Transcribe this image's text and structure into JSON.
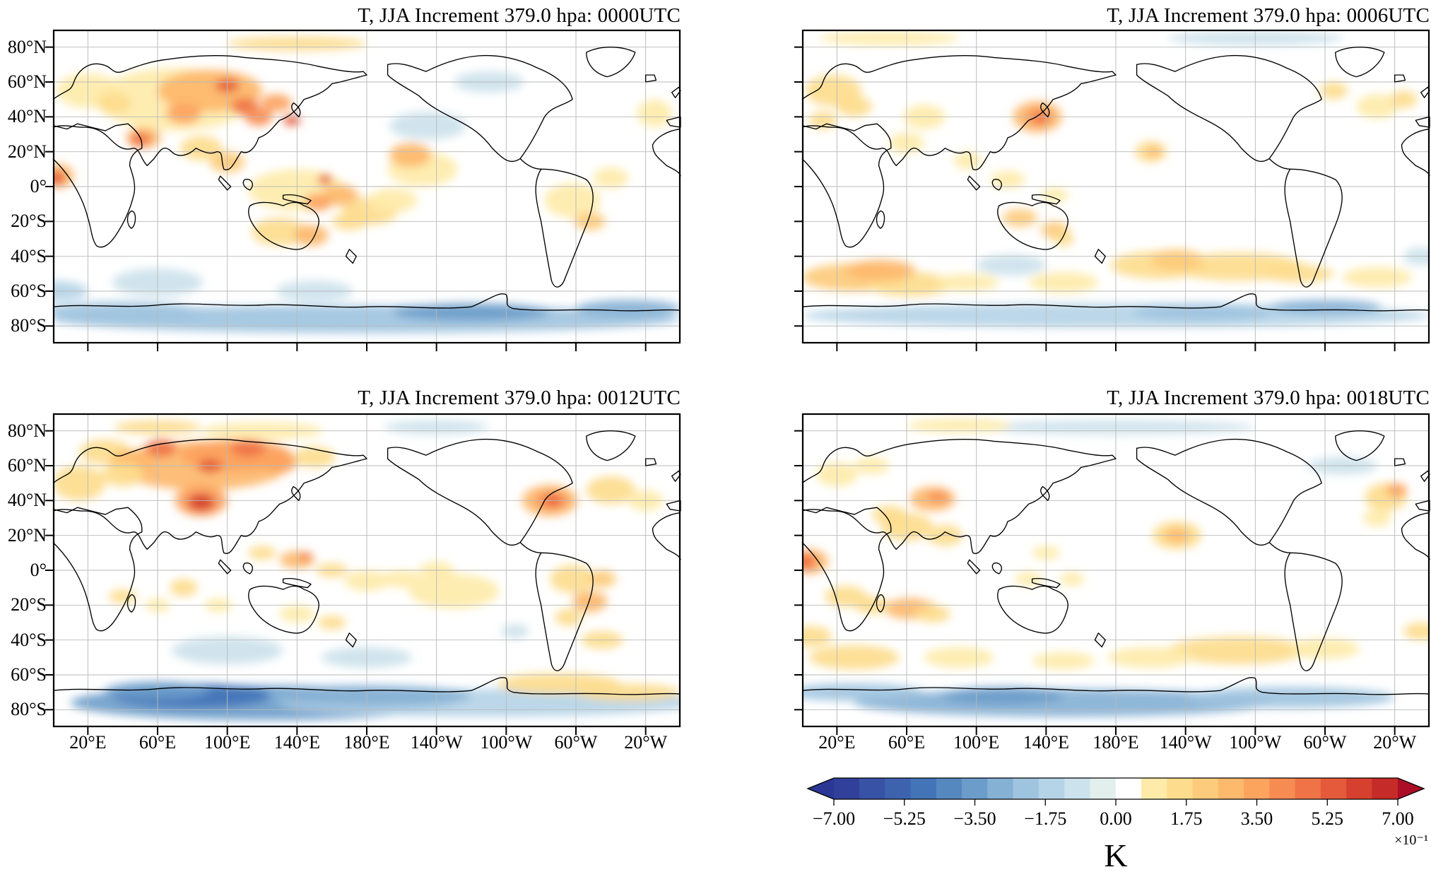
{
  "chart_data": {
    "type": "heatmap",
    "variable": "Temperature (T) analysis increment",
    "season": "JJA",
    "level_hpa": "379.0",
    "projection": "equirectangular, longitude 0-360 centered on 180",
    "grid": "on",
    "x_ticks": [
      "20°E",
      "60°E",
      "100°E",
      "140°E",
      "180°E",
      "140°W",
      "100°W",
      "60°W",
      "20°W"
    ],
    "y_ticks": [
      "80°N",
      "60°N",
      "40°N",
      "20°N",
      "0°",
      "20°S",
      "40°S",
      "60°S",
      "80°S"
    ],
    "colorbar": {
      "min": -7.0,
      "max": 7.0,
      "tick_interval": 1.75,
      "tick_labels": [
        "−7.00",
        "−5.25",
        "−3.50",
        "−1.75",
        "0.00",
        "1.75",
        "3.50",
        "5.25",
        "7.00"
      ],
      "tick_values": [
        -7.0,
        -5.25,
        -3.5,
        -1.75,
        0.0,
        1.75,
        3.5,
        5.25,
        7.0
      ],
      "unit": "K",
      "exponent": "×10⁻¹",
      "arrow_colors": {
        "left": "#2B3794",
        "right": "#AB0E26"
      },
      "segment_colors": [
        "#31409B",
        "#3852A6",
        "#3D63AF",
        "#4274B7",
        "#5488BF",
        "#6C9DCA",
        "#85B1D5",
        "#9FC4DF",
        "#B5D4E7",
        "#CCE2EC",
        "#E2EFEC",
        "#FFFFFF",
        "#FEEBAA",
        "#FDDC8D",
        "#FDCB7C",
        "#FDB96C",
        "#FCA35E",
        "#F78C52",
        "#EF7346",
        "#E55A3A",
        "#D6402F",
        "#C52B28"
      ]
    },
    "panels": [
      {
        "utc": "0000UTC",
        "title": "T, JJA Increment 379.0 hpa: 0000UTC",
        "anomaly_centers": [
          [
            70,
            50,
            45,
            18,
            1.2
          ],
          [
            90,
            55,
            30,
            12,
            2.8
          ],
          [
            100,
            58,
            7,
            4,
            5.3
          ],
          [
            110,
            46,
            8,
            5,
            4.7
          ],
          [
            75,
            42,
            10,
            6,
            3.7
          ],
          [
            118,
            40,
            8,
            5,
            4.2
          ],
          [
            128,
            48,
            9,
            5,
            3.4
          ],
          [
            137,
            38,
            5,
            3,
            5.5
          ],
          [
            50,
            27,
            6,
            4,
            4.7
          ],
          [
            52,
            28,
            10,
            6,
            3.0
          ],
          [
            20,
            55,
            18,
            10,
            1.2
          ],
          [
            35,
            48,
            10,
            6,
            1.9
          ],
          [
            3,
            6,
            9,
            7,
            2.8
          ],
          [
            2,
            5,
            5,
            4,
            5.3
          ],
          [
            85,
            22,
            12,
            7,
            1.6
          ],
          [
            100,
            14,
            10,
            6,
            2.4
          ],
          [
            140,
            -2,
            28,
            12,
            1.2
          ],
          [
            152,
            -9,
            8,
            5,
            3.7
          ],
          [
            165,
            -5,
            10,
            6,
            2.8
          ],
          [
            182,
            -14,
            16,
            8,
            1.4
          ],
          [
            156,
            4,
            4,
            3,
            5.3
          ],
          [
            170,
            -20,
            10,
            5,
            1.9
          ],
          [
            195,
            -8,
            14,
            7,
            1.2
          ],
          [
            205,
            18,
            12,
            7,
            2.6
          ],
          [
            212,
            10,
            20,
            10,
            1.2
          ],
          [
            130,
            -26,
            16,
            8,
            1.4
          ],
          [
            148,
            -28,
            10,
            6,
            2.6
          ],
          [
            298,
            -8,
            16,
            10,
            1.2
          ],
          [
            308,
            -20,
            9,
            5,
            2.4
          ],
          [
            320,
            5,
            10,
            6,
            1.2
          ],
          [
            345,
            42,
            10,
            8,
            1.2
          ],
          [
            140,
            82,
            40,
            4,
            1.4
          ],
          [
            60,
            -55,
            26,
            8,
            -1.2
          ],
          [
            150,
            -60,
            22,
            6,
            -1.1
          ],
          [
            0,
            -60,
            20,
            6,
            -1.5
          ],
          [
            180,
            -76,
            180,
            8,
            -2.4
          ],
          [
            240,
            -72,
            45,
            5,
            -3.2
          ],
          [
            40,
            -72,
            45,
            6,
            -2.0
          ],
          [
            330,
            -70,
            30,
            5,
            -2.6
          ],
          [
            215,
            35,
            22,
            8,
            -0.7
          ],
          [
            250,
            60,
            20,
            6,
            -0.8
          ]
        ]
      },
      {
        "utc": "0006UTC",
        "title": "T, JJA Increment 379.0 hpa: 0006UTC",
        "anomaly_centers": [
          [
            135,
            40,
            14,
            9,
            2.8
          ],
          [
            136,
            40,
            7,
            5,
            4.4
          ],
          [
            137,
            39,
            3,
            2,
            5.5
          ],
          [
            18,
            55,
            16,
            9,
            1.3
          ],
          [
            30,
            46,
            10,
            6,
            1.7
          ],
          [
            12,
            38,
            8,
            5,
            1.9
          ],
          [
            70,
            40,
            12,
            7,
            1.0
          ],
          [
            60,
            25,
            10,
            6,
            1.2
          ],
          [
            95,
            15,
            8,
            5,
            1.2
          ],
          [
            118,
            4,
            10,
            5,
            0.9
          ],
          [
            145,
            -5,
            8,
            4,
            1.0
          ],
          [
            200,
            20,
            9,
            6,
            1.9
          ],
          [
            202,
            20,
            4,
            3,
            2.6
          ],
          [
            125,
            -18,
            10,
            5,
            2.2
          ],
          [
            145,
            -25,
            8,
            5,
            2.2
          ],
          [
            150,
            -30,
            6,
            4,
            1.6
          ],
          [
            30,
            -52,
            30,
            8,
            2.2
          ],
          [
            45,
            -48,
            20,
            6,
            2.6
          ],
          [
            62,
            -56,
            24,
            7,
            1.4
          ],
          [
            95,
            -55,
            18,
            5,
            1.2
          ],
          [
            150,
            -55,
            20,
            6,
            1.0
          ],
          [
            205,
            -45,
            28,
            8,
            1.6
          ],
          [
            215,
            -42,
            15,
            6,
            2.2
          ],
          [
            250,
            -46,
            38,
            8,
            1.3
          ],
          [
            285,
            -50,
            20,
            5,
            1.6
          ],
          [
            330,
            -52,
            20,
            6,
            1.0
          ],
          [
            120,
            -45,
            20,
            6,
            -1.0
          ],
          [
            355,
            -40,
            10,
            5,
            -0.9
          ],
          [
            180,
            -74,
            180,
            7,
            -1.8
          ],
          [
            300,
            -69,
            32,
            4,
            -2.6
          ],
          [
            230,
            -72,
            40,
            5,
            -2.0
          ],
          [
            330,
            46,
            12,
            7,
            1.0
          ],
          [
            305,
            55,
            8,
            5,
            1.7
          ],
          [
            345,
            50,
            8,
            5,
            1.9
          ],
          [
            260,
            85,
            50,
            4,
            -0.8
          ],
          [
            50,
            85,
            40,
            4,
            1.0
          ]
        ]
      },
      {
        "utc": "0012UTC",
        "title": "T, JJA Increment 379.0 hpa: 0012UTC",
        "anomaly_centers": [
          [
            85,
            60,
            50,
            14,
            2.8
          ],
          [
            105,
            66,
            32,
            9,
            3.7
          ],
          [
            90,
            60,
            7,
            4,
            5.3
          ],
          [
            62,
            70,
            9,
            5,
            4.7
          ],
          [
            112,
            70,
            10,
            5,
            4.7
          ],
          [
            130,
            62,
            10,
            6,
            3.4
          ],
          [
            45,
            62,
            12,
            7,
            2.6
          ],
          [
            150,
            65,
            12,
            6,
            1.9
          ],
          [
            85,
            39,
            8,
            5,
            6.0
          ],
          [
            85,
            40,
            15,
            9,
            3.7
          ],
          [
            15,
            50,
            15,
            10,
            1.4
          ],
          [
            40,
            55,
            12,
            7,
            1.9
          ],
          [
            30,
            68,
            15,
            7,
            1.9
          ],
          [
            285,
            40,
            16,
            9,
            2.8
          ],
          [
            286,
            40,
            9,
            5,
            4.4
          ],
          [
            287,
            40,
            4,
            3,
            5.5
          ],
          [
            320,
            46,
            14,
            8,
            1.3
          ],
          [
            340,
            40,
            10,
            6,
            1.2
          ],
          [
            140,
            6,
            10,
            5,
            2.8
          ],
          [
            145,
            8,
            4,
            2,
            5.0
          ],
          [
            160,
            0,
            9,
            4,
            1.9
          ],
          [
            180,
            -6,
            13,
            6,
            1.2
          ],
          [
            120,
            10,
            8,
            4,
            1.9
          ],
          [
            200,
            -5,
            12,
            5,
            1.2
          ],
          [
            220,
            0,
            10,
            5,
            0.9
          ],
          [
            298,
            -5,
            13,
            8,
            1.3
          ],
          [
            308,
            -18,
            10,
            6,
            2.8
          ],
          [
            296,
            -27,
            8,
            5,
            1.9
          ],
          [
            315,
            -5,
            8,
            5,
            2.4
          ],
          [
            75,
            -10,
            8,
            5,
            1.9
          ],
          [
            60,
            -20,
            7,
            4,
            1.2
          ],
          [
            40,
            -15,
            8,
            4,
            1.4
          ],
          [
            95,
            -20,
            8,
            4,
            1.2
          ],
          [
            140,
            -25,
            10,
            5,
            1.2
          ],
          [
            160,
            -30,
            8,
            4,
            1.4
          ],
          [
            230,
            -12,
            26,
            10,
            0.8
          ],
          [
            100,
            -46,
            32,
            8,
            -1.2
          ],
          [
            180,
            -50,
            26,
            6,
            -0.9
          ],
          [
            265,
            -35,
            8,
            4,
            -1.2
          ],
          [
            315,
            -40,
            12,
            5,
            1.9
          ],
          [
            120,
            -76,
            110,
            10,
            -3.3
          ],
          [
            80,
            -72,
            45,
            7,
            -4.8
          ],
          [
            60,
            -69,
            30,
            5,
            -3.8
          ],
          [
            250,
            -76,
            120,
            8,
            -1.8
          ],
          [
            180,
            -72,
            60,
            6,
            -2.6
          ],
          [
            290,
            -65,
            35,
            6,
            1.6
          ],
          [
            330,
            -70,
            30,
            5,
            1.4
          ],
          [
            120,
            80,
            35,
            5,
            1.2
          ],
          [
            60,
            82,
            25,
            4,
            1.4
          ],
          [
            220,
            82,
            30,
            4,
            -0.8
          ]
        ]
      },
      {
        "utc": "0018UTC",
        "title": "T, JJA Increment 379.0 hpa: 0018UTC",
        "anomaly_centers": [
          [
            75,
            41,
            13,
            7,
            2.8
          ],
          [
            78,
            42,
            6,
            3,
            4.4
          ],
          [
            60,
            25,
            15,
            8,
            1.4
          ],
          [
            82,
            20,
            10,
            6,
            1.9
          ],
          [
            50,
            32,
            10,
            5,
            1.9
          ],
          [
            2,
            5,
            6,
            5,
            5.0
          ],
          [
            5,
            5,
            10,
            7,
            2.8
          ],
          [
            25,
            -15,
            12,
            6,
            1.9
          ],
          [
            40,
            -20,
            10,
            5,
            1.6
          ],
          [
            62,
            -22,
            15,
            6,
            2.8
          ],
          [
            75,
            -25,
            10,
            5,
            1.9
          ],
          [
            215,
            20,
            14,
            8,
            1.4
          ],
          [
            215,
            20,
            7,
            4,
            2.8
          ],
          [
            140,
            10,
            8,
            4,
            1.0
          ],
          [
            155,
            -5,
            7,
            4,
            1.2
          ],
          [
            130,
            -5,
            8,
            4,
            0.9
          ],
          [
            335,
            42,
            12,
            8,
            1.9
          ],
          [
            341,
            46,
            6,
            4,
            3.4
          ],
          [
            330,
            30,
            8,
            5,
            1.2
          ],
          [
            20,
            55,
            12,
            7,
            1.0
          ],
          [
            40,
            60,
            10,
            5,
            1.2
          ],
          [
            30,
            -50,
            26,
            7,
            1.9
          ],
          [
            90,
            -50,
            20,
            6,
            1.2
          ],
          [
            250,
            -46,
            40,
            8,
            1.3
          ],
          [
            200,
            -50,
            25,
            6,
            1.0
          ],
          [
            300,
            -45,
            20,
            6,
            1.2
          ],
          [
            150,
            -52,
            18,
            5,
            0.9
          ],
          [
            5,
            -38,
            12,
            6,
            1.9
          ],
          [
            355,
            -35,
            10,
            5,
            1.4
          ],
          [
            150,
            -76,
            120,
            8,
            -2.6
          ],
          [
            280,
            -73,
            60,
            6,
            -2.3
          ],
          [
            115,
            -72,
            35,
            5,
            -3.3
          ],
          [
            30,
            -70,
            40,
            5,
            -2.0
          ],
          [
            180,
            82,
            80,
            4,
            -0.8
          ],
          [
            310,
            60,
            20,
            5,
            -0.7
          ],
          [
            90,
            83,
            30,
            4,
            0.9
          ]
        ]
      }
    ]
  }
}
